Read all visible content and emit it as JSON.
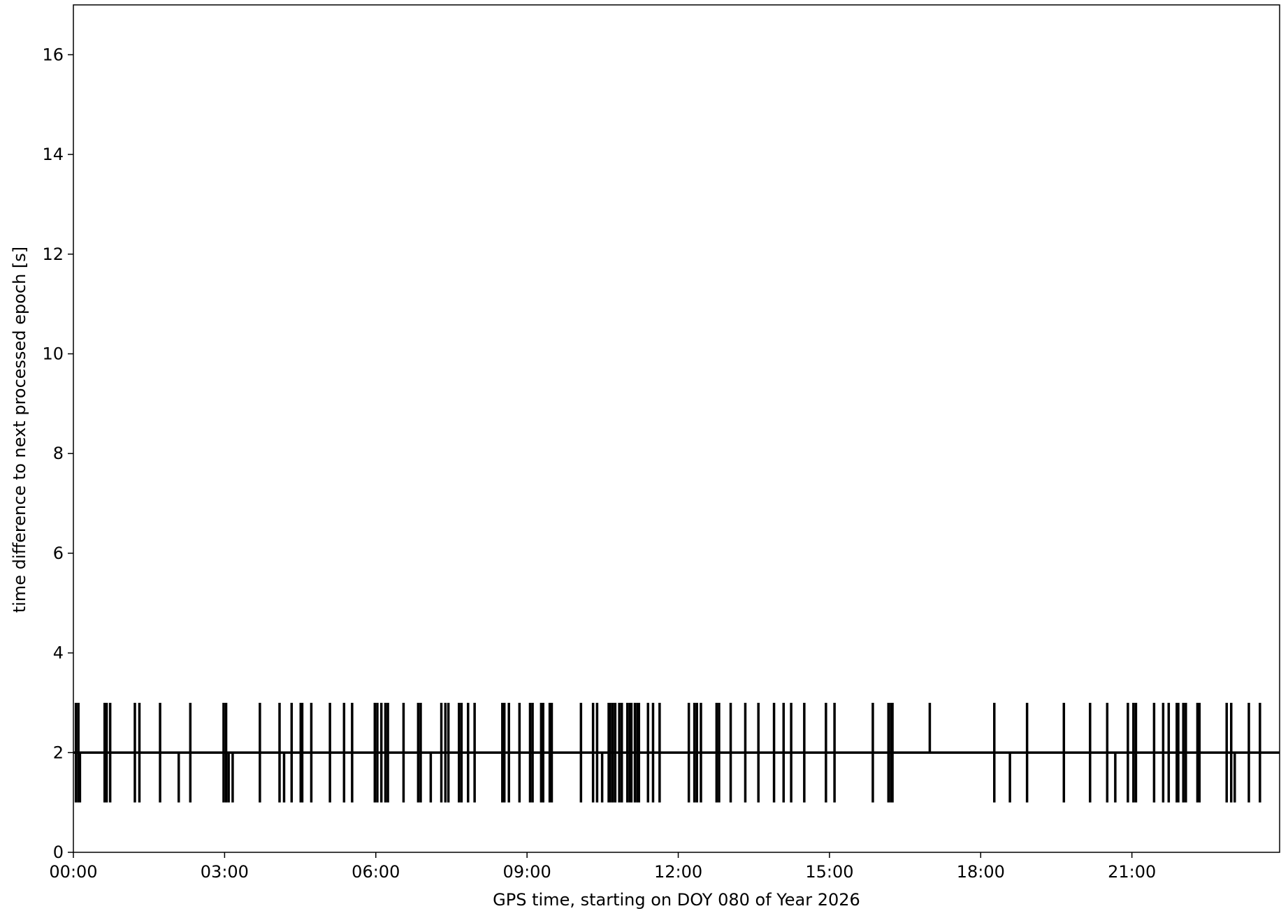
{
  "chart_data": {
    "type": "line",
    "xlabel": "GPS time, starting on DOY 080 of Year 2026",
    "ylabel": "time difference to next processed epoch [s]",
    "xlim": [
      0,
      23.93
    ],
    "ylim": [
      0,
      17
    ],
    "xticks": [
      {
        "value": 0,
        "label": "00:00"
      },
      {
        "value": 3,
        "label": "03:00"
      },
      {
        "value": 6,
        "label": "06:00"
      },
      {
        "value": 9,
        "label": "09:00"
      },
      {
        "value": 12,
        "label": "12:00"
      },
      {
        "value": 15,
        "label": "15:00"
      },
      {
        "value": 18,
        "label": "18:00"
      },
      {
        "value": 21,
        "label": "21:00"
      }
    ],
    "yticks": [
      0,
      2,
      4,
      6,
      8,
      10,
      12,
      14,
      16
    ],
    "grid": false,
    "series": [
      {
        "color": "#000000",
        "x": [
          0,
          23.93
        ],
        "values": [
          2,
          2
        ]
      },
      {
        "color": "#000000",
        "x": [
          0.05,
          0.05,
          0.05,
          0.1,
          0.1,
          0.1,
          0.13,
          0.13,
          0.13,
          0.62,
          0.62,
          0.62,
          0.66,
          0.66,
          0.66,
          0.73,
          0.73,
          0.73,
          1.22,
          1.22,
          1.22,
          1.31,
          1.31,
          1.31,
          1.72,
          1.72,
          1.72,
          2.09,
          2.09,
          2.09,
          2.32,
          2.32,
          2.32,
          2.98,
          2.98,
          2.98,
          3.03,
          3.03,
          3.03,
          3.08,
          3.08,
          3.08,
          3.16,
          3.16,
          3.16,
          3.7,
          3.7,
          3.7,
          4.09,
          4.09,
          4.09,
          4.18,
          4.18,
          4.18,
          4.33,
          4.33,
          4.33,
          4.51,
          4.51,
          4.51,
          4.54,
          4.54,
          4.54,
          4.72,
          4.72,
          4.72,
          5.09,
          5.09,
          5.09,
          5.37,
          5.37,
          5.37,
          5.53,
          5.53,
          5.53,
          5.98,
          5.98,
          5.98,
          6.03,
          6.03,
          6.03,
          6.11,
          6.11,
          6.11,
          6.19,
          6.19,
          6.19,
          6.24,
          6.24,
          6.24,
          6.55,
          6.55,
          6.55,
          6.84,
          6.84,
          6.84,
          6.89,
          6.89,
          6.89,
          7.09,
          7.09,
          7.09,
          7.3,
          7.3,
          7.3,
          7.38,
          7.38,
          7.38,
          7.44,
          7.44,
          7.44,
          7.65,
          7.65,
          7.65,
          7.7,
          7.7,
          7.7,
          7.83,
          7.83,
          7.83,
          7.96,
          7.96,
          7.96,
          8.51,
          8.51,
          8.51,
          8.55,
          8.55,
          8.55,
          8.64,
          8.64,
          8.64,
          8.85,
          8.85,
          8.85,
          9.06,
          9.06,
          9.06,
          9.11,
          9.11,
          9.11,
          9.28,
          9.28,
          9.28,
          9.32,
          9.32,
          9.32,
          9.45,
          9.45,
          9.45,
          9.49,
          9.49,
          9.49,
          10.07,
          10.07,
          10.07,
          10.31,
          10.31,
          10.31,
          10.39,
          10.39,
          10.39,
          10.49,
          10.49,
          10.49,
          10.62,
          10.62,
          10.62,
          10.65,
          10.65,
          10.65,
          10.7,
          10.7,
          10.7,
          10.75,
          10.75,
          10.75,
          10.83,
          10.83,
          10.83,
          10.88,
          10.88,
          10.88,
          10.99,
          10.99,
          10.99,
          11.04,
          11.04,
          11.04,
          11.07,
          11.07,
          11.07,
          11.14,
          11.14,
          11.14,
          11.19,
          11.19,
          11.19,
          11.22,
          11.22,
          11.22,
          11.4,
          11.4,
          11.4,
          11.5,
          11.5,
          11.5,
          11.63,
          11.63,
          11.63,
          12.21,
          12.21,
          12.21,
          12.32,
          12.32,
          12.32,
          12.37,
          12.37,
          12.37,
          12.45,
          12.45,
          12.45,
          12.76,
          12.76,
          12.76,
          12.81,
          12.81,
          12.81,
          13.04,
          13.04,
          13.04,
          13.33,
          13.33,
          13.33,
          13.59,
          13.59,
          13.59,
          13.9,
          13.9,
          13.9,
          14.09,
          14.09,
          14.09,
          14.24,
          14.24,
          14.24,
          14.5,
          14.5,
          14.5,
          14.93,
          14.93,
          14.93,
          15.1,
          15.1,
          15.1,
          15.86,
          15.86,
          15.86,
          16.17,
          16.17,
          16.17,
          16.22,
          16.22,
          16.22,
          16.25,
          16.25,
          16.25,
          16.99,
          16.99,
          16.99,
          18.27,
          18.27,
          18.27,
          18.58,
          18.58,
          18.58,
          18.92,
          18.92,
          18.92,
          19.65,
          19.65,
          19.65,
          20.17,
          20.17,
          20.17,
          20.51,
          20.51,
          20.51,
          20.67,
          20.67,
          20.67,
          20.92,
          20.92,
          20.92,
          21.03,
          21.03,
          21.03,
          21.08,
          21.08,
          21.08,
          21.44,
          21.44,
          21.44,
          21.62,
          21.62,
          21.62,
          21.73,
          21.73,
          21.73,
          21.89,
          21.89,
          21.89,
          21.92,
          21.92,
          21.92,
          22.02,
          22.02,
          22.02,
          22.07,
          22.07,
          22.07,
          22.3,
          22.3,
          22.3,
          22.34,
          22.34,
          22.34,
          22.88,
          22.88,
          22.88,
          22.97,
          22.97,
          22.97,
          23.04,
          23.04,
          23.04,
          23.32,
          23.32,
          23.32,
          23.54,
          23.54,
          23.54
        ],
        "values": [
          3,
          1,
          null,
          3,
          1,
          null,
          2,
          1,
          null,
          3,
          1,
          null,
          3,
          1,
          null,
          3,
          1,
          null,
          3,
          1,
          null,
          3,
          1,
          null,
          3,
          1,
          null,
          2,
          1,
          null,
          3,
          1,
          null,
          3,
          1,
          null,
          3,
          1,
          null,
          2,
          1,
          null,
          2,
          1,
          null,
          3,
          1,
          null,
          3,
          1,
          null,
          2,
          1,
          null,
          3,
          1,
          null,
          3,
          1,
          null,
          3,
          1,
          null,
          3,
          1,
          null,
          3,
          1,
          null,
          3,
          1,
          null,
          3,
          1,
          null,
          3,
          1,
          null,
          3,
          1,
          null,
          3,
          1,
          null,
          3,
          1,
          null,
          3,
          1,
          null,
          3,
          1,
          null,
          3,
          1,
          null,
          3,
          1,
          null,
          2,
          1,
          null,
          3,
          1,
          null,
          3,
          1,
          null,
          3,
          1,
          null,
          3,
          1,
          null,
          3,
          1,
          null,
          3,
          1,
          null,
          3,
          1,
          null,
          3,
          1,
          null,
          3,
          1,
          null,
          3,
          1,
          null,
          3,
          1,
          null,
          3,
          1,
          null,
          3,
          1,
          null,
          3,
          1,
          null,
          3,
          1,
          null,
          3,
          1,
          null,
          3,
          1,
          null,
          3,
          1,
          null,
          3,
          1,
          null,
          3,
          1,
          null,
          2,
          1,
          null,
          3,
          1,
          null,
          3,
          1,
          null,
          3,
          1,
          null,
          3,
          1,
          null,
          3,
          1,
          null,
          3,
          1,
          null,
          3,
          1,
          null,
          3,
          1,
          null,
          3,
          1,
          null,
          3,
          1,
          null,
          3,
          1,
          null,
          3,
          1,
          null,
          3,
          1,
          null,
          3,
          1,
          null,
          3,
          1,
          null,
          3,
          1,
          null,
          3,
          1,
          null,
          3,
          1,
          null,
          3,
          1,
          null,
          3,
          1,
          null,
          3,
          1,
          null,
          3,
          1,
          null,
          3,
          1,
          null,
          3,
          1,
          null,
          3,
          1,
          null,
          3,
          1,
          null,
          3,
          1,
          null,
          3,
          1,
          null,
          3,
          1,
          null,
          3,
          1,
          null,
          3,
          1,
          null,
          3,
          1,
          null,
          3,
          1,
          null,
          3,
          1,
          null,
          2,
          3,
          null,
          3,
          1,
          null,
          2,
          1,
          null,
          3,
          1,
          null,
          3,
          1,
          null,
          3,
          1,
          null,
          3,
          1,
          null,
          2,
          1,
          null,
          3,
          1,
          null,
          3,
          1,
          null,
          3,
          1,
          null,
          3,
          1,
          null,
          3,
          1,
          null,
          3,
          1,
          null,
          3,
          1,
          null,
          3,
          1,
          null,
          3,
          1,
          null,
          3,
          1,
          null,
          3,
          1,
          null,
          3,
          1,
          null,
          3,
          1,
          null,
          3,
          1,
          null,
          2,
          1,
          null,
          3,
          1,
          null,
          3,
          1,
          null
        ]
      }
    ]
  }
}
